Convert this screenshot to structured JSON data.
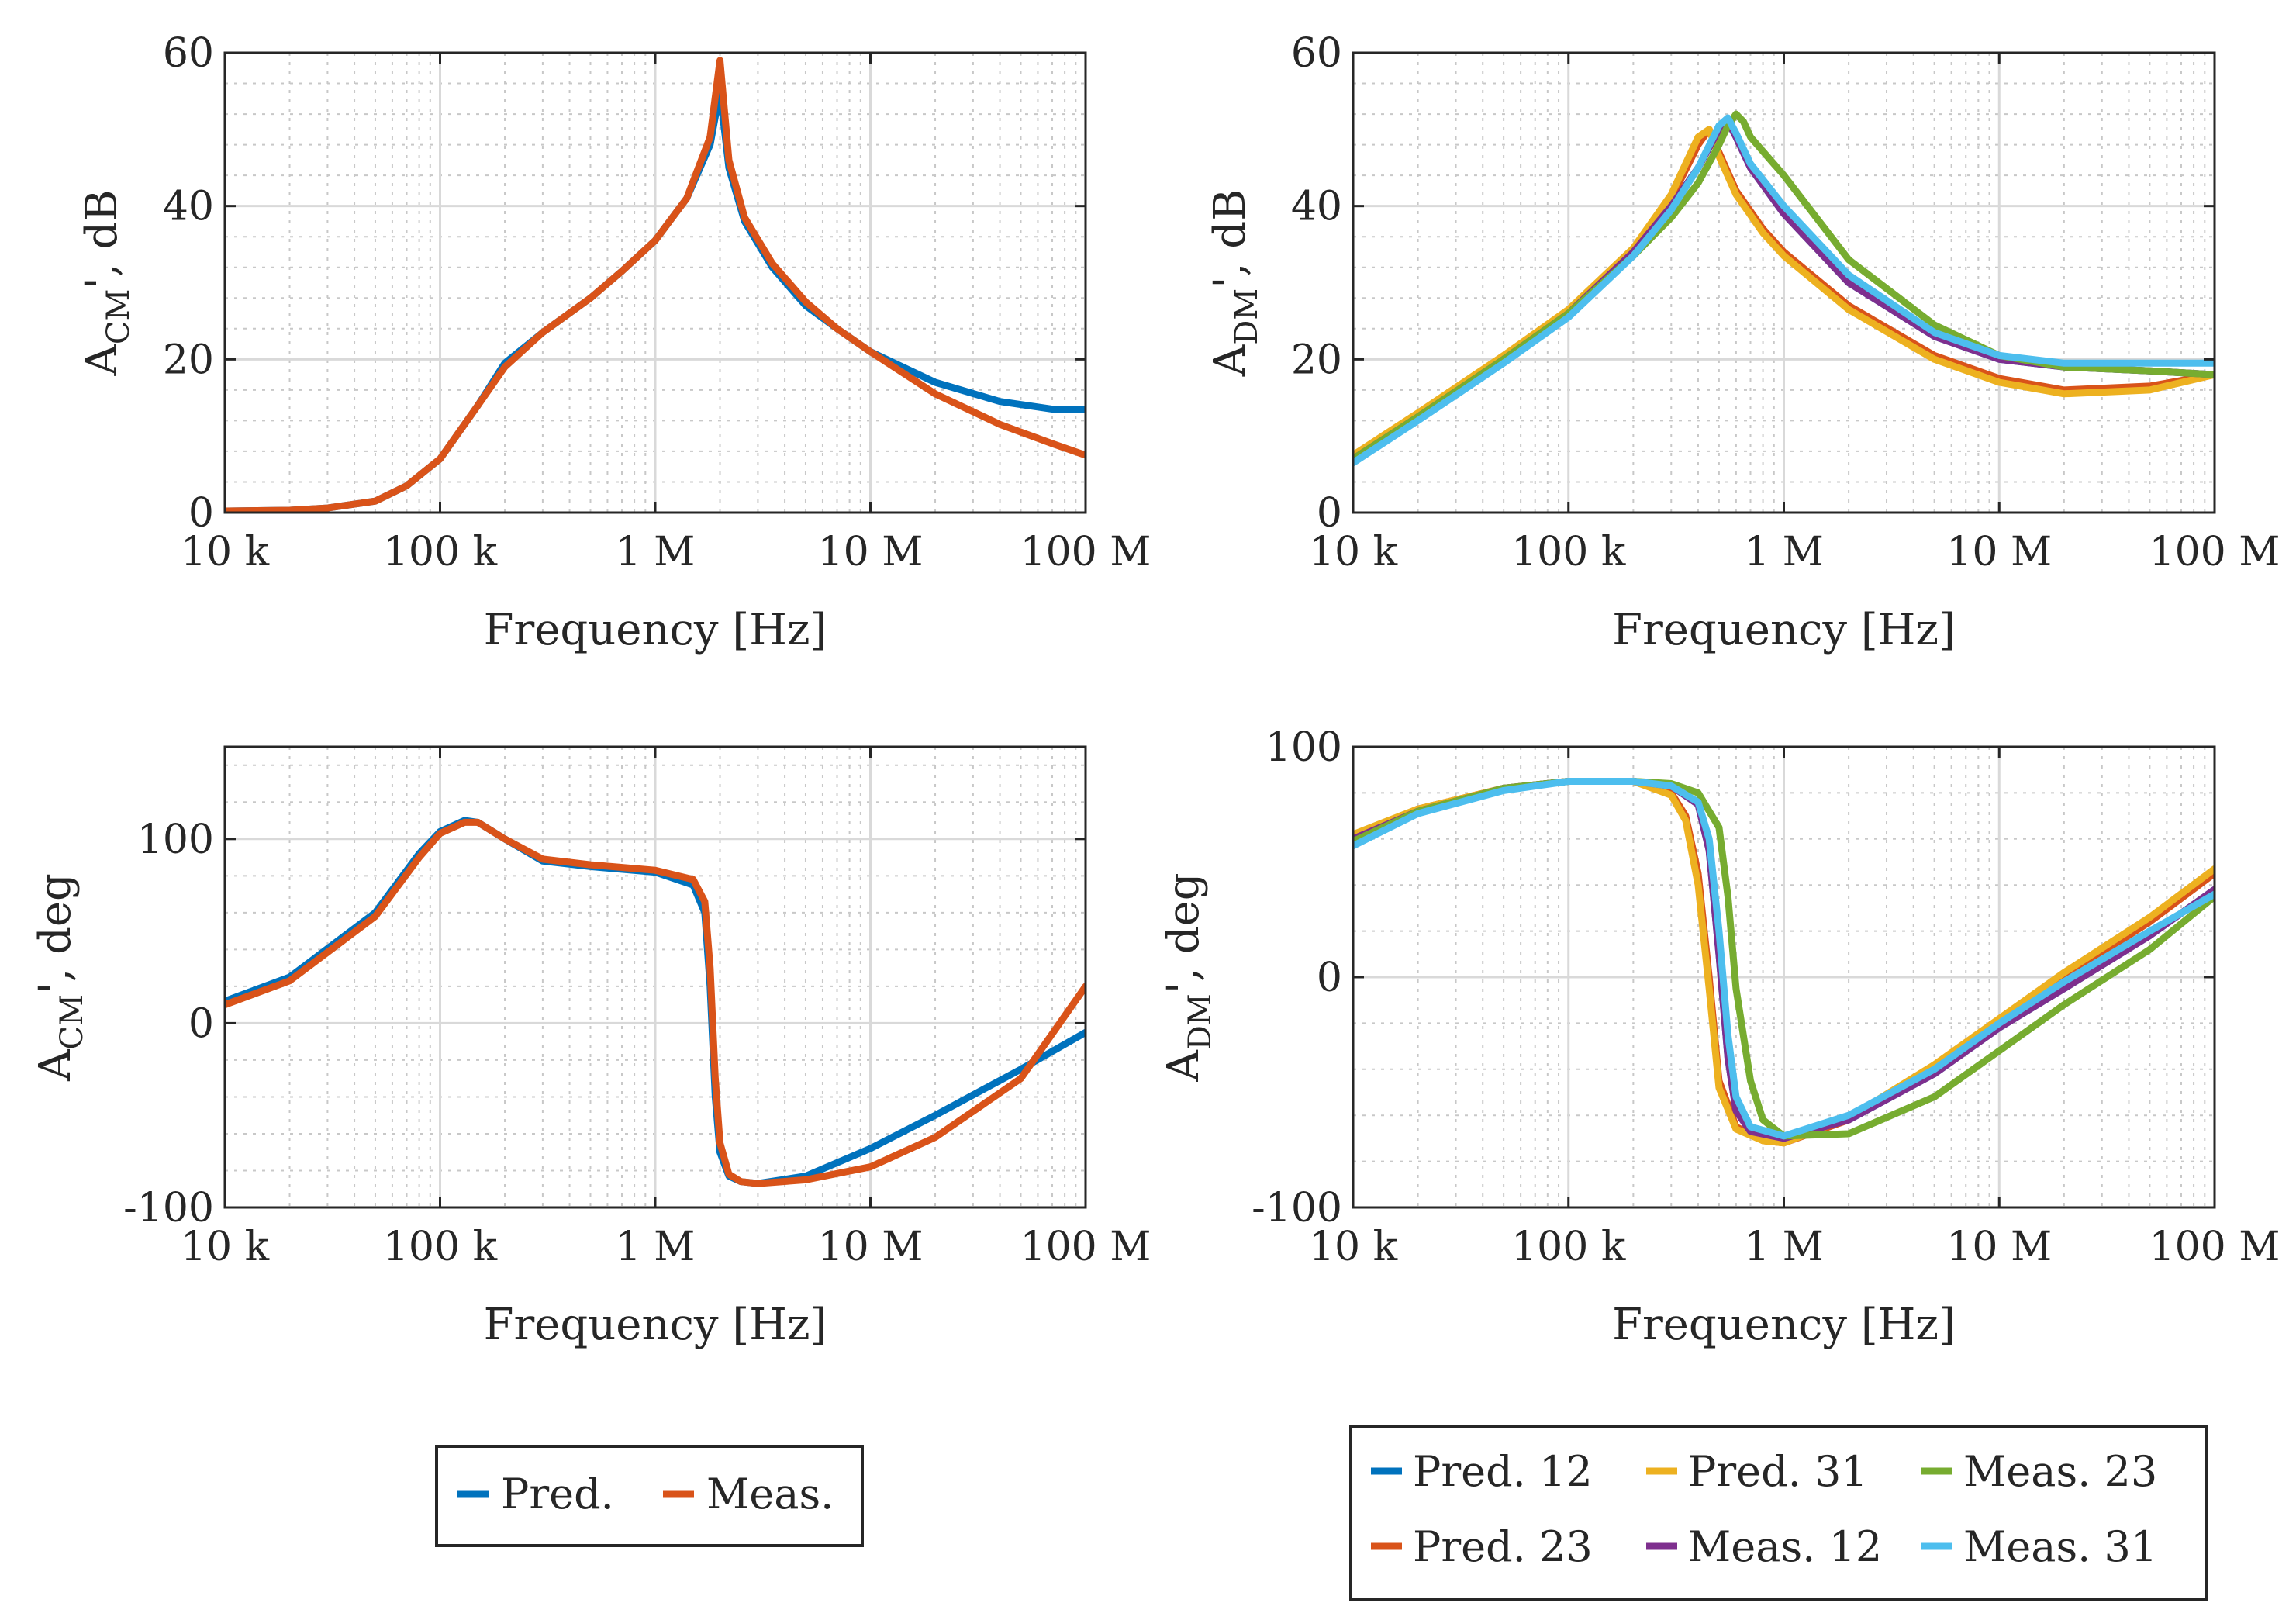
{
  "chart_data": [
    {
      "type": "line",
      "id": "cm-mag",
      "xscale": "log",
      "xlim": [
        10000,
        100000000
      ],
      "ylim": [
        0,
        60
      ],
      "xticks": [
        10000,
        100000,
        1000000,
        10000000,
        100000000
      ],
      "xtick_labels": [
        "10 k",
        "100 k",
        "1 M",
        "10 M",
        "100 M"
      ],
      "yticks": [
        0,
        20,
        40,
        60
      ],
      "ytick_labels": [
        "0",
        "20",
        "40",
        "60"
      ],
      "xlabel": "Frequency [Hz]",
      "ylabel": {
        "main": "A",
        "sub": "CM",
        "rest": "', dB"
      },
      "grid": true,
      "series": [
        {
          "name": "Pred.",
          "color": "#0072BD",
          "x": [
            10000,
            20000,
            30000,
            50000,
            70000,
            100000,
            150000,
            200000,
            300000,
            500000,
            700000,
            1000000,
            1400000,
            1800000,
            2000000,
            2200000,
            2600000,
            3500000,
            5000000,
            7000000,
            10000000,
            20000000,
            40000000,
            70000000,
            100000000
          ],
          "values": [
            0.2,
            0.3,
            0.6,
            1.5,
            3.5,
            7.0,
            14.0,
            19.5,
            23.5,
            28.0,
            31.5,
            35.5,
            41.0,
            48.0,
            55.0,
            45.0,
            38.0,
            32.0,
            27.0,
            24.0,
            21.0,
            17.0,
            14.5,
            13.5,
            13.5
          ]
        },
        {
          "name": "Meas.",
          "color": "#D95319",
          "x": [
            10000,
            20000,
            30000,
            50000,
            70000,
            100000,
            150000,
            200000,
            300000,
            500000,
            700000,
            1000000,
            1400000,
            1800000,
            2000000,
            2200000,
            2600000,
            3500000,
            5000000,
            7000000,
            10000000,
            20000000,
            40000000,
            70000000,
            100000000
          ],
          "values": [
            0.2,
            0.3,
            0.6,
            1.5,
            3.5,
            7.0,
            14.0,
            19.0,
            23.5,
            28.0,
            31.5,
            35.5,
            41.0,
            49.0,
            59.0,
            46.0,
            38.5,
            32.5,
            27.5,
            24.0,
            21.0,
            15.5,
            11.5,
            9.0,
            7.5
          ]
        }
      ]
    },
    {
      "type": "line",
      "id": "dm-mag",
      "xscale": "log",
      "xlim": [
        10000,
        100000000
      ],
      "ylim": [
        0,
        60
      ],
      "xticks": [
        10000,
        100000,
        1000000,
        10000000,
        100000000
      ],
      "xtick_labels": [
        "10 k",
        "100 k",
        "1 M",
        "10 M",
        "100 M"
      ],
      "yticks": [
        0,
        20,
        40,
        60
      ],
      "ytick_labels": [
        "0",
        "20",
        "40",
        "60"
      ],
      "xlabel": "Frequency [Hz]",
      "ylabel": {
        "main": "A",
        "sub": "DM",
        "rest": "', dB"
      },
      "grid": true,
      "series": [
        {
          "name": "Pred. 12",
          "color": "#0072BD",
          "x": [
            10000,
            20000,
            50000,
            100000,
            200000,
            300000,
            400000,
            500000,
            550000,
            600000,
            700000,
            1000000,
            2000000,
            5000000,
            10000000,
            20000000,
            50000000,
            100000000
          ],
          "values": [
            7,
            12.5,
            20,
            26,
            34,
            40,
            45,
            50,
            51,
            49,
            45,
            39,
            30,
            23,
            20,
            19,
            18.5,
            18
          ]
        },
        {
          "name": "Pred. 23",
          "color": "#D95319",
          "x": [
            10000,
            20000,
            50000,
            100000,
            200000,
            300000,
            400000,
            450000,
            500000,
            600000,
            800000,
            1000000,
            2000000,
            5000000,
            10000000,
            20000000,
            50000000,
            100000000
          ],
          "values": [
            7,
            12.5,
            20,
            26,
            34,
            41,
            48,
            50,
            47,
            42,
            37,
            34,
            27,
            20.5,
            17.5,
            16,
            16.5,
            18
          ]
        },
        {
          "name": "Pred. 31",
          "color": "#EDB120",
          "x": [
            10000,
            20000,
            50000,
            100000,
            200000,
            300000,
            400000,
            450000,
            500000,
            600000,
            800000,
            1000000,
            2000000,
            5000000,
            10000000,
            20000000,
            50000000,
            100000000
          ],
          "values": [
            7.5,
            13,
            20.5,
            26.5,
            34.5,
            41.5,
            49,
            50,
            46.5,
            41.5,
            36.5,
            33.5,
            26.5,
            20,
            17,
            15.5,
            16,
            18
          ]
        },
        {
          "name": "Meas. 12",
          "color": "#7E2F8E",
          "x": [
            10000,
            20000,
            50000,
            100000,
            200000,
            300000,
            400000,
            500000,
            550000,
            600000,
            700000,
            1000000,
            2000000,
            5000000,
            10000000,
            20000000,
            50000000,
            100000000
          ],
          "values": [
            7,
            12.5,
            20,
            26,
            34,
            40,
            45,
            50,
            51,
            49,
            45,
            39,
            30,
            23,
            20,
            19,
            18.5,
            18
          ]
        },
        {
          "name": "Meas. 23",
          "color": "#77AC30",
          "x": [
            10000,
            20000,
            50000,
            100000,
            200000,
            300000,
            400000,
            500000,
            550000,
            600000,
            650000,
            700000,
            1000000,
            2000000,
            5000000,
            10000000,
            20000000,
            50000000,
            100000000
          ],
          "values": [
            7,
            12.5,
            20,
            26,
            33.5,
            38.5,
            43,
            48,
            50.5,
            52,
            51,
            49,
            44,
            33,
            24.5,
            20.5,
            19,
            18.5,
            18
          ]
        },
        {
          "name": "Meas. 31",
          "color": "#4DBEEE",
          "x": [
            10000,
            20000,
            50000,
            100000,
            200000,
            300000,
            400000,
            500000,
            550000,
            600000,
            700000,
            1000000,
            2000000,
            5000000,
            10000000,
            20000000,
            50000000,
            100000000
          ],
          "values": [
            6.5,
            12,
            19.5,
            25.5,
            33.5,
            39.5,
            45,
            50.5,
            51.5,
            49.5,
            45.5,
            40,
            31,
            23.5,
            20.5,
            19.5,
            19.5,
            19.5
          ]
        }
      ]
    },
    {
      "type": "line",
      "id": "cm-phase",
      "xscale": "log",
      "xlim": [
        10000,
        100000000
      ],
      "ylim": [
        -100,
        150
      ],
      "xticks": [
        10000,
        100000,
        1000000,
        10000000,
        100000000
      ],
      "xtick_labels": [
        "10 k",
        "100 k",
        "1 M",
        "10 M",
        "100 M"
      ],
      "yticks": [
        -100,
        0,
        100
      ],
      "ytick_labels": [
        "-100",
        "0",
        "100"
      ],
      "xlabel": "Frequency [Hz]",
      "ylabel": {
        "main": "A",
        "sub": "CM",
        "rest": "', deg"
      },
      "grid": true,
      "series": [
        {
          "name": "Pred.",
          "color": "#0072BD",
          "x": [
            10000,
            20000,
            50000,
            80000,
            100000,
            130000,
            150000,
            200000,
            300000,
            500000,
            1000000,
            1500000,
            1700000,
            1800000,
            1900000,
            2000000,
            2200000,
            2500000,
            3000000,
            5000000,
            10000000,
            20000000,
            50000000,
            100000000
          ],
          "values": [
            12,
            25,
            60,
            92,
            104,
            110,
            109,
            100,
            88,
            85,
            82,
            75,
            60,
            20,
            -40,
            -70,
            -83,
            -86,
            -87,
            -83,
            -68,
            -50,
            -25,
            -5
          ]
        },
        {
          "name": "Meas.",
          "color": "#D95319",
          "x": [
            10000,
            20000,
            50000,
            80000,
            100000,
            130000,
            150000,
            200000,
            300000,
            500000,
            1000000,
            1500000,
            1700000,
            1800000,
            1900000,
            2000000,
            2200000,
            2500000,
            3000000,
            5000000,
            10000000,
            20000000,
            50000000,
            100000000
          ],
          "values": [
            10,
            23,
            58,
            90,
            103,
            109,
            109,
            100,
            89,
            86,
            83,
            78,
            66,
            30,
            -30,
            -65,
            -82,
            -86,
            -87,
            -85,
            -78,
            -62,
            -30,
            20
          ]
        }
      ]
    },
    {
      "type": "line",
      "id": "dm-phase",
      "xscale": "log",
      "xlim": [
        10000,
        100000000
      ],
      "ylim": [
        -100,
        100
      ],
      "xticks": [
        10000,
        100000,
        1000000,
        10000000,
        100000000
      ],
      "xtick_labels": [
        "10 k",
        "100 k",
        "1 M",
        "10 M",
        "100 M"
      ],
      "yticks": [
        -100,
        0,
        100
      ],
      "ytick_labels": [
        "-100",
        "0",
        "100"
      ],
      "xlabel": "Frequency [Hz]",
      "ylabel": {
        "main": "A",
        "sub": "DM",
        "rest": "', deg"
      },
      "grid": true,
      "series": [
        {
          "name": "Pred. 12",
          "color": "#0072BD",
          "x": [
            10000,
            20000,
            50000,
            100000,
            200000,
            300000,
            400000,
            450000,
            500000,
            550000,
            600000,
            700000,
            1000000,
            2000000,
            5000000,
            10000000,
            20000000,
            50000000,
            100000000
          ],
          "values": [
            60,
            72,
            82,
            85,
            85,
            83,
            75,
            55,
            10,
            -35,
            -58,
            -67,
            -70,
            -62,
            -42,
            -22,
            -5,
            18,
            38
          ]
        },
        {
          "name": "Pred. 23",
          "color": "#D95319",
          "x": [
            10000,
            20000,
            50000,
            100000,
            200000,
            300000,
            350000,
            400000,
            450000,
            500000,
            600000,
            800000,
            1000000,
            2000000,
            5000000,
            10000000,
            20000000,
            50000000,
            100000000
          ],
          "values": [
            61,
            73,
            82,
            85,
            85,
            80,
            70,
            45,
            0,
            -45,
            -65,
            -71,
            -72,
            -62,
            -40,
            -20,
            0,
            24,
            45
          ]
        },
        {
          "name": "Pred. 31",
          "color": "#EDB120",
          "x": [
            10000,
            20000,
            50000,
            100000,
            200000,
            300000,
            350000,
            400000,
            450000,
            500000,
            600000,
            800000,
            1000000,
            2000000,
            5000000,
            10000000,
            20000000,
            50000000,
            100000000
          ],
          "values": [
            62,
            73,
            82,
            85,
            85,
            79,
            68,
            40,
            -5,
            -48,
            -66,
            -71,
            -72,
            -61,
            -38,
            -18,
            2,
            26,
            47
          ]
        },
        {
          "name": "Meas. 12",
          "color": "#7E2F8E",
          "x": [
            10000,
            20000,
            50000,
            100000,
            200000,
            300000,
            400000,
            450000,
            500000,
            550000,
            600000,
            700000,
            1000000,
            2000000,
            5000000,
            10000000,
            20000000,
            50000000,
            100000000
          ],
          "values": [
            60,
            72,
            82,
            85,
            85,
            83,
            75,
            55,
            10,
            -35,
            -58,
            -67,
            -70,
            -62,
            -42,
            -22,
            -5,
            18,
            38
          ]
        },
        {
          "name": "Meas. 23",
          "color": "#77AC30",
          "x": [
            10000,
            20000,
            50000,
            100000,
            200000,
            300000,
            400000,
            500000,
            550000,
            600000,
            700000,
            800000,
            1000000,
            2000000,
            5000000,
            10000000,
            20000000,
            50000000,
            100000000
          ],
          "values": [
            59,
            72,
            82,
            85,
            85,
            84,
            80,
            65,
            35,
            -5,
            -45,
            -62,
            -69,
            -68,
            -52,
            -32,
            -12,
            12,
            35
          ]
        },
        {
          "name": "Meas. 31",
          "color": "#4DBEEE",
          "x": [
            10000,
            20000,
            50000,
            100000,
            200000,
            300000,
            400000,
            450000,
            500000,
            550000,
            600000,
            700000,
            1000000,
            2000000,
            5000000,
            10000000,
            20000000,
            50000000,
            100000000
          ],
          "values": [
            57,
            71,
            81,
            85,
            85,
            83,
            76,
            60,
            20,
            -25,
            -52,
            -65,
            -69,
            -60,
            -40,
            -20,
            -2,
            20,
            36
          ]
        }
      ]
    }
  ],
  "legend_cm": [
    {
      "label": "Pred.",
      "color": "#0072BD"
    },
    {
      "label": "Meas.",
      "color": "#D95319"
    }
  ],
  "legend_dm": [
    {
      "label": "Pred. 12",
      "color": "#0072BD"
    },
    {
      "label": "Pred. 31",
      "color": "#EDB120"
    },
    {
      "label": "Meas. 23",
      "color": "#77AC30"
    },
    {
      "label": "Pred. 23",
      "color": "#D95319"
    },
    {
      "label": "Meas. 12",
      "color": "#7E2F8E"
    },
    {
      "label": "Meas. 31",
      "color": "#4DBEEE"
    }
  ]
}
